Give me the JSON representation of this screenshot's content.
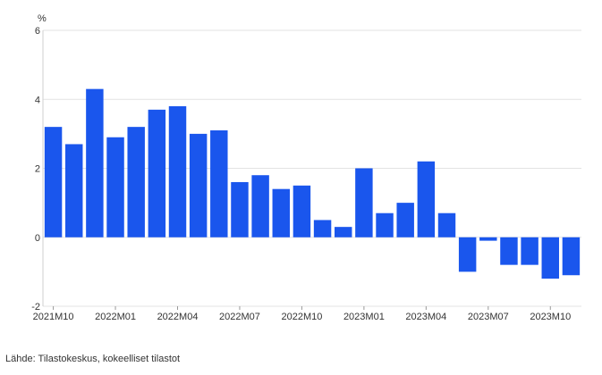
{
  "chart_data": {
    "type": "bar",
    "unit_label": "%",
    "categories": [
      "2021M10",
      "2021M11",
      "2021M12",
      "2022M01",
      "2022M02",
      "2022M03",
      "2022M04",
      "2022M05",
      "2022M06",
      "2022M07",
      "2022M08",
      "2022M09",
      "2022M10",
      "2022M11",
      "2022M12",
      "2023M01",
      "2023M02",
      "2023M03",
      "2023M04",
      "2023M05",
      "2023M06",
      "2023M07",
      "2023M08",
      "2023M09",
      "2023M10",
      "2023M11"
    ],
    "values": [
      3.2,
      2.7,
      4.3,
      2.9,
      3.2,
      3.7,
      3.8,
      3.0,
      3.1,
      1.6,
      1.8,
      1.4,
      1.5,
      0.5,
      0.3,
      2.0,
      0.7,
      1.0,
      2.2,
      0.7,
      -1.0,
      -0.1,
      -0.8,
      -0.8,
      -1.2,
      -1.1
    ],
    "x_tick_labels": [
      "2021M10",
      "2022M01",
      "2022M04",
      "2022M07",
      "2022M10",
      "2023M01",
      "2023M04",
      "2023M07",
      "2023M10"
    ],
    "y_ticks": [
      -2,
      0,
      2,
      4,
      6
    ],
    "ylim": [
      -2,
      6
    ],
    "bar_color": "#1a56ed",
    "grid": true
  },
  "source": "Lähde: Tilastokeskus, kokeelliset tilastot"
}
